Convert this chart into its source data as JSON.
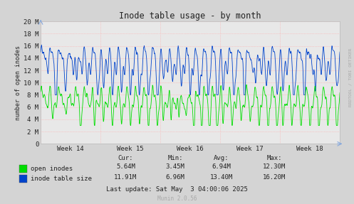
{
  "title": "Inode table usage - by month",
  "ylabel": "number of open inodes",
  "bg_color": "#d4d4d4",
  "plot_bg_color": "#e8e8e8",
  "grid_dotted_color": "#ffaaaa",
  "x_tick_labels": [
    "Week 14",
    "Week 15",
    "Week 16",
    "Week 17",
    "Week 18"
  ],
  "y_max": 20000000,
  "y_ticks": [
    0,
    2000000,
    4000000,
    6000000,
    8000000,
    10000000,
    12000000,
    14000000,
    16000000,
    18000000,
    20000000
  ],
  "y_tick_labels": [
    "0",
    "2 M",
    "4 M",
    "6 M",
    "8 M",
    "10 M",
    "12 M",
    "14 M",
    "16 M",
    "18 M",
    "20 M"
  ],
  "green_color": "#00dd00",
  "blue_color": "#0044cc",
  "legend": [
    {
      "label": "open inodes",
      "color": "#00dd00"
    },
    {
      "label": "inode table size",
      "color": "#0044cc"
    }
  ],
  "stats_header": [
    "Cur:",
    "Min:",
    "Avg:",
    "Max:"
  ],
  "stats": [
    [
      "5.64M",
      "3.45M",
      "6.94M",
      "12.30M"
    ],
    [
      "11.91M",
      "6.96M",
      "13.40M",
      "16.20M"
    ]
  ],
  "last_update": "Last update: Sat May  3 04:00:06 2025",
  "munin_version": "Munin 2.0.56",
  "rrdtool_label": "RRDTOOL / TOBI OETIKER"
}
